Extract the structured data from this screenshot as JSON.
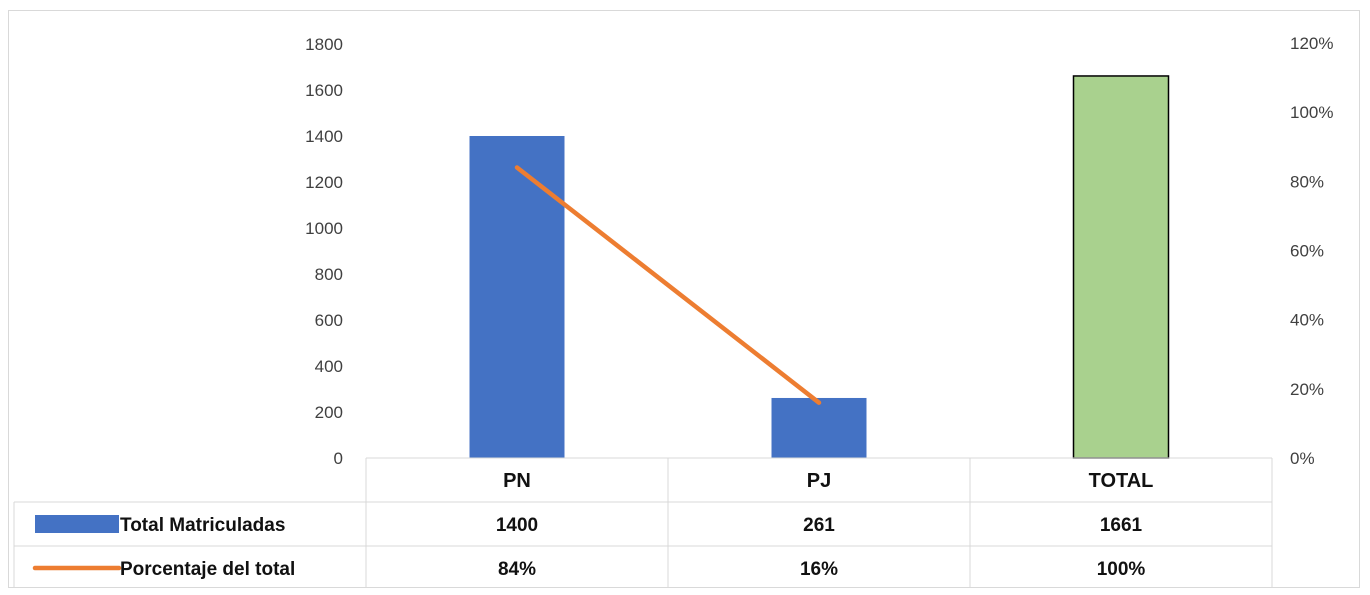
{
  "chart_data": {
    "type": "bar",
    "categories": [
      "PN",
      "PJ",
      "TOTAL"
    ],
    "series": [
      {
        "name": "Total Matriculadas",
        "kind": "bar",
        "axis": "left",
        "values": [
          1400,
          261,
          1661
        ],
        "value_labels": [
          "1400",
          "261",
          "1661"
        ],
        "colors": [
          "#4472c4",
          "#4472c4",
          "#a9d18e"
        ]
      },
      {
        "name": "Porcentaje del total",
        "kind": "line",
        "axis": "right",
        "values": [
          0.84,
          0.16,
          null
        ],
        "value_labels": [
          "84%",
          "16%",
          "100%"
        ],
        "color": "#ed7d31"
      }
    ],
    "left_axis": {
      "ylim": [
        0,
        1800
      ],
      "ticks": [
        "0",
        "200",
        "400",
        "600",
        "800",
        "1000",
        "1200",
        "1400",
        "1600",
        "1800"
      ]
    },
    "right_axis": {
      "ylim": [
        0,
        1.2
      ],
      "ticks": [
        "0%",
        "20%",
        "40%",
        "60%",
        "80%",
        "100%",
        "120%"
      ]
    },
    "title": "",
    "xlabel": "",
    "ylabel": "",
    "grid": false,
    "legend": "data-table",
    "total_bar_outline": "#000000"
  }
}
